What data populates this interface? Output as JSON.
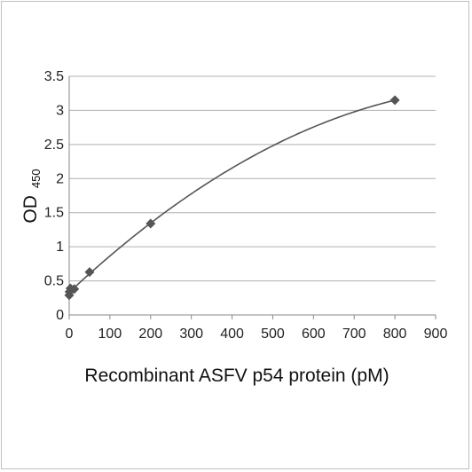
{
  "chart_data": {
    "type": "scatter",
    "title": "",
    "xlabel": "Recombinant ASFV p54 protein (pM)",
    "ylabel_main": "OD",
    "ylabel_sub": "450",
    "xlim": [
      0,
      900
    ],
    "ylim": [
      0,
      3.5
    ],
    "xticks": [
      "0",
      "100",
      "200",
      "300",
      "400",
      "500",
      "600",
      "700",
      "800",
      "900"
    ],
    "yticks": [
      "0",
      "0.5",
      "1",
      "1.5",
      "2",
      "2.5",
      "3",
      "3.5"
    ],
    "grid": "horizontal",
    "legend": "none",
    "points": [
      {
        "x": 0,
        "y": 0.29
      },
      {
        "x": 0.8,
        "y": 0.34
      },
      {
        "x": 3.1,
        "y": 0.39
      },
      {
        "x": 12.5,
        "y": 0.38
      },
      {
        "x": 50,
        "y": 0.63
      },
      {
        "x": 200,
        "y": 1.34
      },
      {
        "x": 800,
        "y": 3.15
      }
    ],
    "trendline": {
      "type": "polynomial",
      "order": 2
    },
    "colors": {
      "marker": "#555555",
      "line": "#555555",
      "grid": "#b0b0b0",
      "axis": "#888888"
    }
  }
}
